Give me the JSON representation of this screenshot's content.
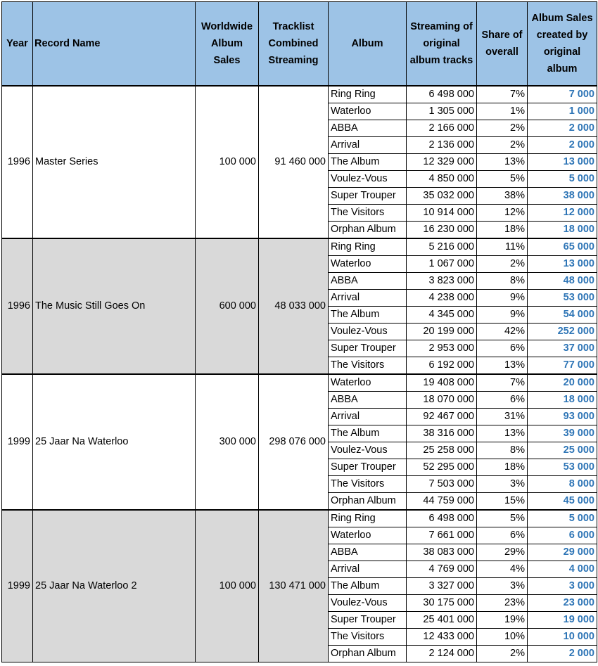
{
  "headers": {
    "year": "Year",
    "record_name": "Record Name",
    "worldwide_sales": "Worldwide Album Sales",
    "tracklist_streaming": "Tracklist Combined Streaming",
    "album": "Album",
    "streaming_original": "Streaming of original album tracks",
    "share": "Share of overall",
    "album_sales_created": "Album Sales created by original album"
  },
  "groups": [
    {
      "year": "1996",
      "record_name": "Master Series",
      "worldwide_sales": "100 000",
      "tracklist_streaming": "91 460 000",
      "rows": [
        {
          "album": "Ring Ring",
          "streaming": "6 498 000",
          "share": "7%",
          "sales": "7 000"
        },
        {
          "album": "Waterloo",
          "streaming": "1 305 000",
          "share": "1%",
          "sales": "1 000"
        },
        {
          "album": "ABBA",
          "streaming": "2 166 000",
          "share": "2%",
          "sales": "2 000"
        },
        {
          "album": "Arrival",
          "streaming": "2 136 000",
          "share": "2%",
          "sales": "2 000"
        },
        {
          "album": "The Album",
          "streaming": "12 329 000",
          "share": "13%",
          "sales": "13 000"
        },
        {
          "album": "Voulez-Vous",
          "streaming": "4 850 000",
          "share": "5%",
          "sales": "5 000"
        },
        {
          "album": "Super Trouper",
          "streaming": "35 032 000",
          "share": "38%",
          "sales": "38 000"
        },
        {
          "album": "The Visitors",
          "streaming": "10 914 000",
          "share": "12%",
          "sales": "12 000"
        },
        {
          "album": "Orphan Album",
          "streaming": "16 230 000",
          "share": "18%",
          "sales": "18 000"
        }
      ]
    },
    {
      "year": "1996",
      "record_name": "The Music Still Goes On",
      "worldwide_sales": "600 000",
      "tracklist_streaming": "48 033 000",
      "rows": [
        {
          "album": "Ring Ring",
          "streaming": "5 216 000",
          "share": "11%",
          "sales": "65 000"
        },
        {
          "album": "Waterloo",
          "streaming": "1 067 000",
          "share": "2%",
          "sales": "13 000"
        },
        {
          "album": "ABBA",
          "streaming": "3 823 000",
          "share": "8%",
          "sales": "48 000"
        },
        {
          "album": "Arrival",
          "streaming": "4 238 000",
          "share": "9%",
          "sales": "53 000"
        },
        {
          "album": "The Album",
          "streaming": "4 345 000",
          "share": "9%",
          "sales": "54 000"
        },
        {
          "album": "Voulez-Vous",
          "streaming": "20 199 000",
          "share": "42%",
          "sales": "252 000"
        },
        {
          "album": "Super Trouper",
          "streaming": "2 953 000",
          "share": "6%",
          "sales": "37 000"
        },
        {
          "album": "The Visitors",
          "streaming": "6 192 000",
          "share": "13%",
          "sales": "77 000"
        }
      ]
    },
    {
      "year": "1999",
      "record_name": "25 Jaar Na Waterloo",
      "worldwide_sales": "300 000",
      "tracklist_streaming": "298 076 000",
      "rows": [
        {
          "album": "Waterloo",
          "streaming": "19 408 000",
          "share": "7%",
          "sales": "20 000"
        },
        {
          "album": "ABBA",
          "streaming": "18 070 000",
          "share": "6%",
          "sales": "18 000"
        },
        {
          "album": "Arrival",
          "streaming": "92 467 000",
          "share": "31%",
          "sales": "93 000"
        },
        {
          "album": "The Album",
          "streaming": "38 316 000",
          "share": "13%",
          "sales": "39 000"
        },
        {
          "album": "Voulez-Vous",
          "streaming": "25 258 000",
          "share": "8%",
          "sales": "25 000"
        },
        {
          "album": "Super Trouper",
          "streaming": "52 295 000",
          "share": "18%",
          "sales": "53 000"
        },
        {
          "album": "The Visitors",
          "streaming": "7 503 000",
          "share": "3%",
          "sales": "8 000"
        },
        {
          "album": "Orphan Album",
          "streaming": "44 759 000",
          "share": "15%",
          "sales": "45 000"
        }
      ]
    },
    {
      "year": "1999",
      "record_name": "25 Jaar Na Waterloo 2",
      "worldwide_sales": "100 000",
      "tracklist_streaming": "130 471 000",
      "rows": [
        {
          "album": "Ring Ring",
          "streaming": "6 498 000",
          "share": "5%",
          "sales": "5 000"
        },
        {
          "album": "Waterloo",
          "streaming": "7 661 000",
          "share": "6%",
          "sales": "6 000"
        },
        {
          "album": "ABBA",
          "streaming": "38 083 000",
          "share": "29%",
          "sales": "29 000"
        },
        {
          "album": "Arrival",
          "streaming": "4 769 000",
          "share": "4%",
          "sales": "4 000"
        },
        {
          "album": "The Album",
          "streaming": "3 327 000",
          "share": "3%",
          "sales": "3 000"
        },
        {
          "album": "Voulez-Vous",
          "streaming": "30 175 000",
          "share": "23%",
          "sales": "23 000"
        },
        {
          "album": "Super Trouper",
          "streaming": "25 401 000",
          "share": "19%",
          "sales": "19 000"
        },
        {
          "album": "The Visitors",
          "streaming": "12 433 000",
          "share": "10%",
          "sales": "10 000"
        },
        {
          "album": "Orphan Album",
          "streaming": "2 124 000",
          "share": "2%",
          "sales": "2 000"
        }
      ]
    }
  ]
}
